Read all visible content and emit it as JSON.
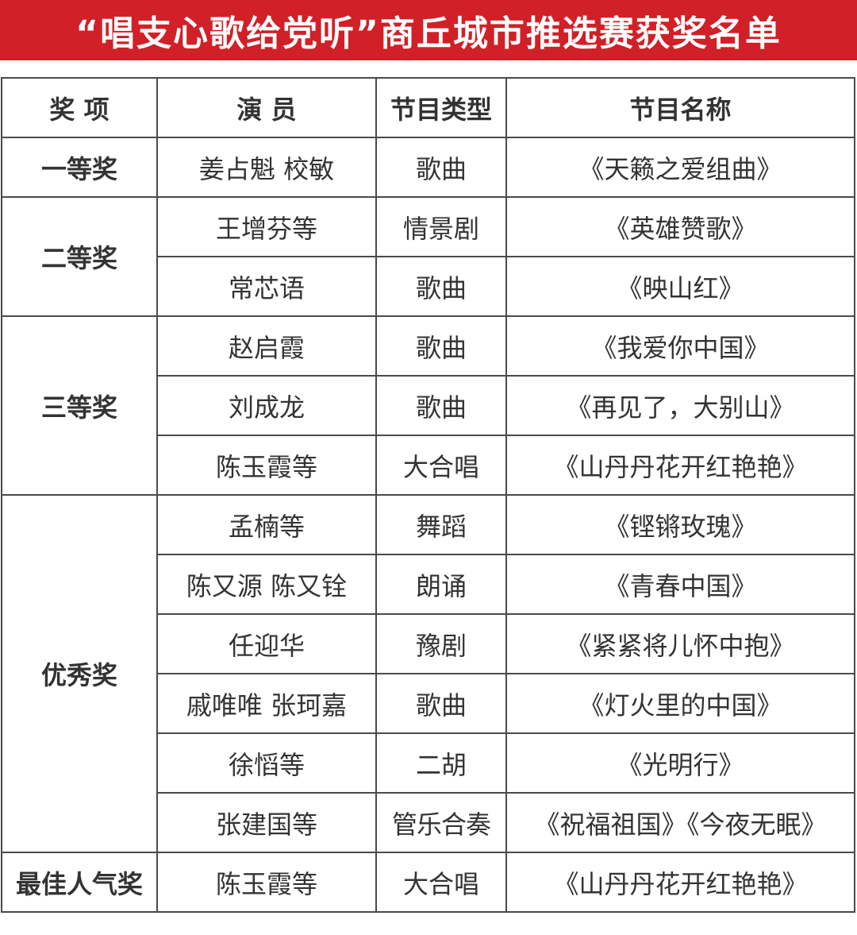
{
  "title": "“唱支心歌给党听”商丘城市推选赛获奖名单",
  "colors": {
    "title_background": "#d12027",
    "title_text": "#ffffff",
    "border": "#4a4a4a",
    "text": "#333333"
  },
  "headers": [
    "奖 项",
    "演 员",
    "节目类型",
    "节目名称"
  ],
  "groups": [
    {
      "award": "一等奖",
      "rows": [
        {
          "performer": "姜占魁 校敏",
          "type": "歌曲",
          "program": "《天籁之爱组曲》"
        }
      ]
    },
    {
      "award": "二等奖",
      "rows": [
        {
          "performer": "王增芬等",
          "type": "情景剧",
          "program": "《英雄赞歌》"
        },
        {
          "performer": "常芯语",
          "type": "歌曲",
          "program": "《映山红》"
        }
      ]
    },
    {
      "award": "三等奖",
      "rows": [
        {
          "performer": "赵启霞",
          "type": "歌曲",
          "program": "《我爱你中国》"
        },
        {
          "performer": "刘成龙",
          "type": "歌曲",
          "program": "《再见了，大别山》"
        },
        {
          "performer": "陈玉霞等",
          "type": "大合唱",
          "program": "《山丹丹花开红艳艳》"
        }
      ]
    },
    {
      "award": "优秀奖",
      "rows": [
        {
          "performer": "孟楠等",
          "type": "舞蹈",
          "program": "《铿锵玫瑰》"
        },
        {
          "performer": "陈又源 陈又铨",
          "type": "朗诵",
          "program": "《青春中国》"
        },
        {
          "performer": "任迎华",
          "type": "豫剧",
          "program": "《紧紧将儿怀中抱》"
        },
        {
          "performer": "戚唯唯 张珂嘉",
          "type": "歌曲",
          "program": "《灯火里的中国》"
        },
        {
          "performer": "徐慆等",
          "type": "二胡",
          "program": "《光明行》"
        },
        {
          "performer": "张建国等",
          "type": "管乐合奏",
          "program": "《祝福祖国》《今夜无眠》"
        }
      ]
    },
    {
      "award": "最佳人气奖",
      "rows": [
        {
          "performer": "陈玉霞等",
          "type": "大合唱",
          "program": "《山丹丹花开红艳艳》"
        }
      ]
    }
  ]
}
